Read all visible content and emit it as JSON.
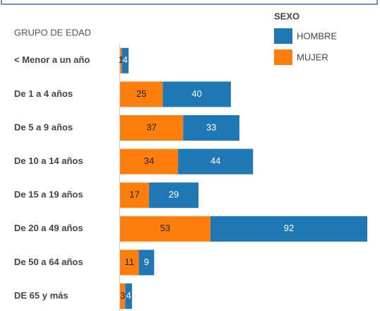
{
  "chart_data": {
    "type": "stacked-bar-horizontal",
    "y_axis_title": "GRUPO DE EDAD",
    "legend_title": "SEXO",
    "categories": [
      "< Menor a un año",
      "De 1 a 4 años",
      "De 5 a 9 años",
      "De 10 a 14 años",
      "De 15 a 19 años",
      "De 20 a 49 años",
      "De 50 a 64 años",
      "DE 65 y más"
    ],
    "series": [
      {
        "name": "MUJER",
        "color": "#ff7f0e",
        "values": [
          1,
          25,
          37,
          34,
          17,
          53,
          11,
          3
        ]
      },
      {
        "name": "HOMBRE",
        "color": "#1f77b4",
        "values": [
          4,
          40,
          33,
          44,
          29,
          92,
          9,
          4
        ]
      }
    ]
  }
}
